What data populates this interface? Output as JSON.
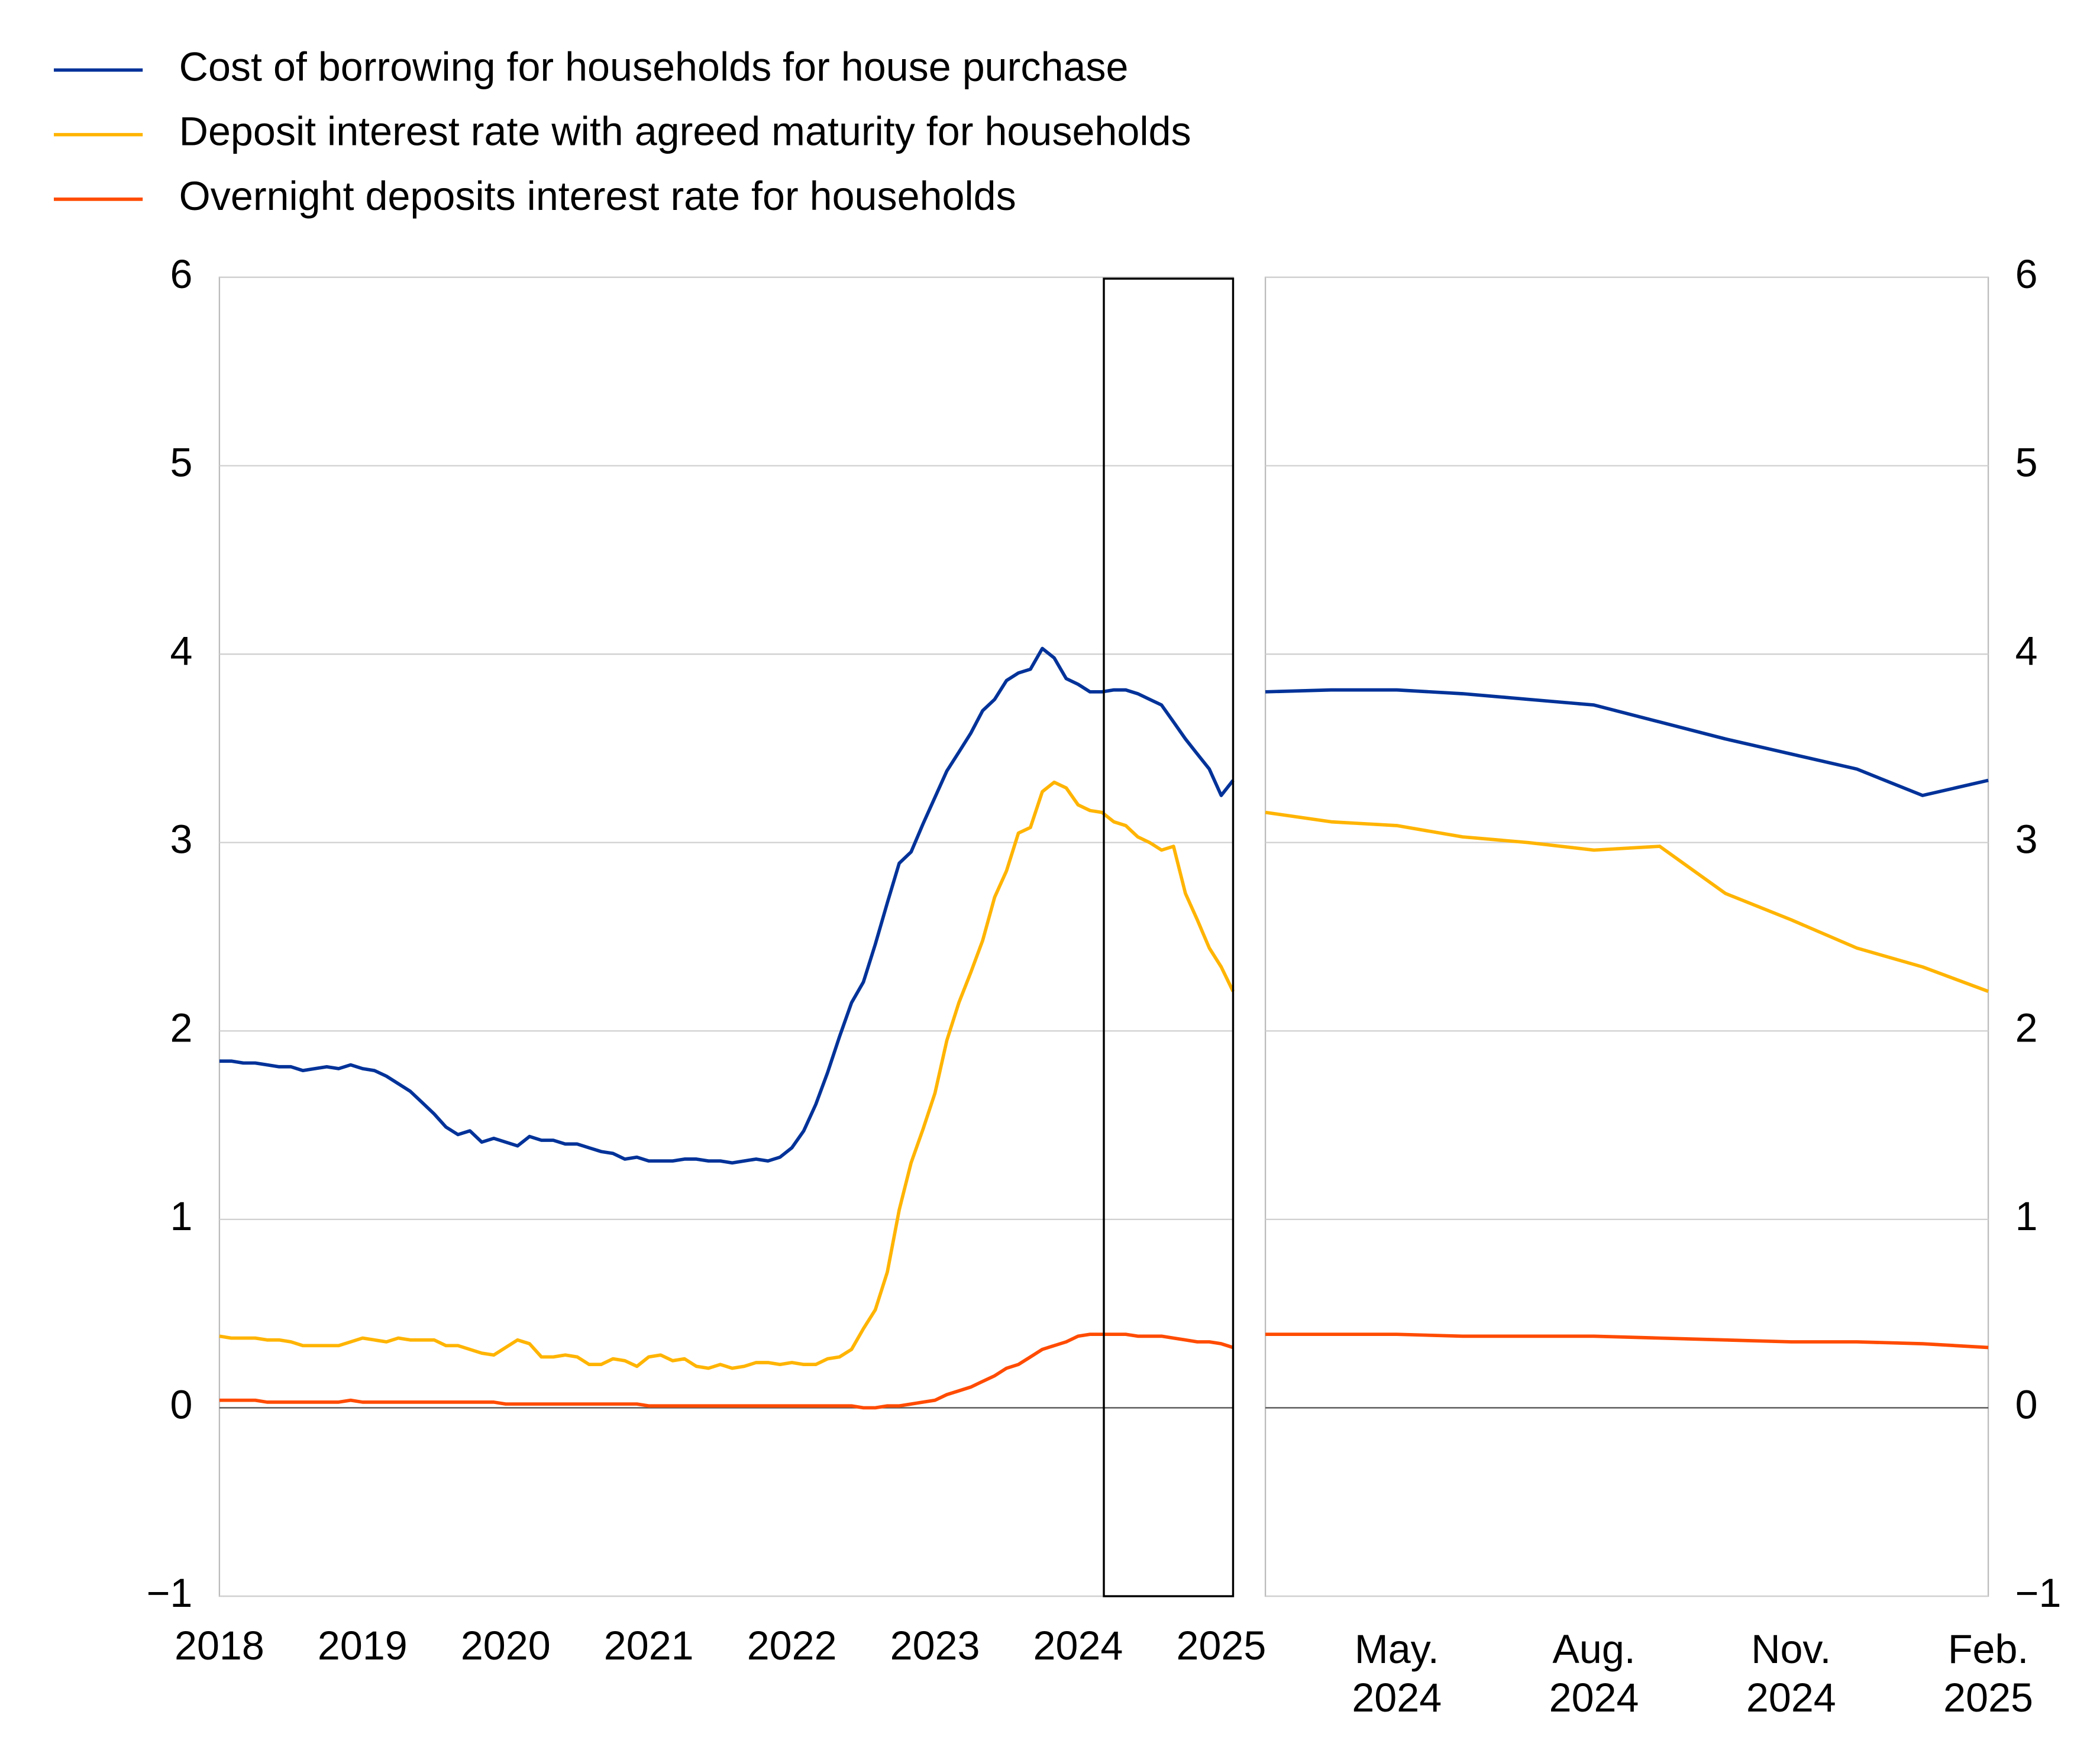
{
  "chart_data": [
    {
      "type": "line",
      "x": [
        2018,
        2018.083,
        2018.167,
        2018.25,
        2018.333,
        2018.417,
        2018.5,
        2018.583,
        2018.667,
        2018.75,
        2018.833,
        2018.917,
        2019,
        2019.083,
        2019.167,
        2019.25,
        2019.333,
        2019.417,
        2019.5,
        2019.583,
        2019.667,
        2019.75,
        2019.833,
        2019.917,
        2020,
        2020.083,
        2020.167,
        2020.25,
        2020.333,
        2020.417,
        2020.5,
        2020.583,
        2020.667,
        2020.75,
        2020.833,
        2020.917,
        2021,
        2021.083,
        2021.167,
        2021.25,
        2021.333,
        2021.417,
        2021.5,
        2021.583,
        2021.667,
        2021.75,
        2021.833,
        2021.917,
        2022,
        2022.083,
        2022.167,
        2022.25,
        2022.333,
        2022.417,
        2022.5,
        2022.583,
        2022.667,
        2022.75,
        2022.833,
        2022.917,
        2023,
        2023.083,
        2023.167,
        2023.25,
        2023.333,
        2023.417,
        2023.5,
        2023.583,
        2023.667,
        2023.75,
        2023.833,
        2023.917,
        2024,
        2024.083,
        2024.167,
        2024.25,
        2024.333,
        2024.417,
        2024.5,
        2024.583,
        2024.667,
        2024.75,
        2024.833,
        2024.917,
        2025,
        2025.083
      ],
      "xlim": [
        2018,
        2025.083
      ],
      "xticks": [
        2018,
        2019,
        2020,
        2021,
        2022,
        2023,
        2024,
        2025
      ],
      "ylim": [
        -1,
        6
      ],
      "yticks": [
        {
          "value": -1,
          "label": "−1"
        },
        0,
        1,
        2,
        3,
        4,
        5,
        6
      ],
      "grid": true,
      "series": [
        {
          "name": "Cost of borrowing for households for house purchase",
          "color": "#003299",
          "values": [
            1.84,
            1.84,
            1.83,
            1.83,
            1.82,
            1.81,
            1.81,
            1.79,
            1.8,
            1.81,
            1.8,
            1.82,
            1.8,
            1.79,
            1.76,
            1.72,
            1.68,
            1.62,
            1.56,
            1.49,
            1.45,
            1.47,
            1.41,
            1.43,
            1.41,
            1.39,
            1.44,
            1.42,
            1.42,
            1.4,
            1.4,
            1.38,
            1.36,
            1.35,
            1.32,
            1.33,
            1.31,
            1.31,
            1.31,
            1.32,
            1.32,
            1.31,
            1.31,
            1.3,
            1.31,
            1.32,
            1.31,
            1.33,
            1.38,
            1.47,
            1.61,
            1.78,
            1.97,
            2.15,
            2.26,
            2.46,
            2.68,
            2.89,
            2.95,
            3.1,
            3.24,
            3.38,
            3.48,
            3.58,
            3.7,
            3.76,
            3.86,
            3.9,
            3.92,
            4.03,
            3.98,
            3.87,
            3.84,
            3.8,
            3.8,
            3.81,
            3.81,
            3.79,
            3.76,
            3.73,
            3.64,
            3.55,
            3.47,
            3.39,
            3.25,
            3.33
          ]
        },
        {
          "name": "Deposit interest rate with agreed maturity for households",
          "color": "#ffb400",
          "values": [
            0.38,
            0.37,
            0.37,
            0.37,
            0.36,
            0.36,
            0.35,
            0.33,
            0.33,
            0.33,
            0.33,
            0.35,
            0.37,
            0.36,
            0.35,
            0.37,
            0.36,
            0.36,
            0.36,
            0.33,
            0.33,
            0.31,
            0.29,
            0.28,
            0.32,
            0.36,
            0.34,
            0.27,
            0.27,
            0.28,
            0.27,
            0.23,
            0.23,
            0.26,
            0.25,
            0.22,
            0.27,
            0.28,
            0.25,
            0.26,
            0.22,
            0.21,
            0.23,
            0.21,
            0.22,
            0.24,
            0.24,
            0.23,
            0.24,
            0.23,
            0.23,
            0.26,
            0.27,
            0.31,
            0.42,
            0.52,
            0.72,
            1.05,
            1.3,
            1.48,
            1.67,
            1.95,
            2.15,
            2.31,
            2.48,
            2.71,
            2.85,
            3.05,
            3.08,
            3.27,
            3.32,
            3.29,
            3.2,
            3.17,
            3.16,
            3.11,
            3.09,
            3.03,
            3.0,
            2.96,
            2.98,
            2.73,
            2.59,
            2.44,
            2.34,
            2.21
          ]
        },
        {
          "name": "Overnight deposits interest rate for households",
          "color": "#ff4b00",
          "values": [
            0.04,
            0.04,
            0.04,
            0.04,
            0.03,
            0.03,
            0.03,
            0.03,
            0.03,
            0.03,
            0.03,
            0.04,
            0.03,
            0.03,
            0.03,
            0.03,
            0.03,
            0.03,
            0.03,
            0.03,
            0.03,
            0.03,
            0.03,
            0.03,
            0.02,
            0.02,
            0.02,
            0.02,
            0.02,
            0.02,
            0.02,
            0.02,
            0.02,
            0.02,
            0.02,
            0.02,
            0.01,
            0.01,
            0.01,
            0.01,
            0.01,
            0.01,
            0.01,
            0.01,
            0.01,
            0.01,
            0.01,
            0.01,
            0.01,
            0.01,
            0.01,
            0.01,
            0.01,
            0.01,
            0.0,
            0.0,
            0.01,
            0.01,
            0.02,
            0.03,
            0.04,
            0.07,
            0.09,
            0.11,
            0.14,
            0.17,
            0.21,
            0.23,
            0.27,
            0.31,
            0.33,
            0.35,
            0.38,
            0.39,
            0.39,
            0.39,
            0.39,
            0.38,
            0.38,
            0.38,
            0.37,
            0.36,
            0.35,
            0.35,
            0.34,
            0.32
          ]
        }
      ]
    },
    {
      "type": "line",
      "categories": [
        null,
        null,
        "May. 2024",
        null,
        null,
        "Aug. 2024",
        null,
        null,
        "Nov. 2024",
        null,
        null,
        "Feb. 2025"
      ],
      "ylim": [
        -1,
        6
      ],
      "yticks": [
        {
          "value": -1,
          "label": "−1"
        },
        0,
        1,
        2,
        3,
        4,
        5,
        6
      ],
      "grid": true,
      "series": [
        {
          "color": "#003299",
          "values": [
            3.8,
            3.81,
            3.81,
            3.79,
            3.76,
            3.73,
            3.64,
            3.55,
            3.47,
            3.39,
            3.25,
            3.33
          ]
        },
        {
          "color": "#ffb400",
          "values": [
            3.16,
            3.11,
            3.09,
            3.03,
            3.0,
            2.96,
            2.98,
            2.73,
            2.59,
            2.44,
            2.34,
            2.21
          ]
        },
        {
          "color": "#ff4b00",
          "values": [
            0.39,
            0.39,
            0.39,
            0.38,
            0.38,
            0.38,
            0.37,
            0.36,
            0.35,
            0.35,
            0.34,
            0.32
          ]
        }
      ]
    }
  ]
}
